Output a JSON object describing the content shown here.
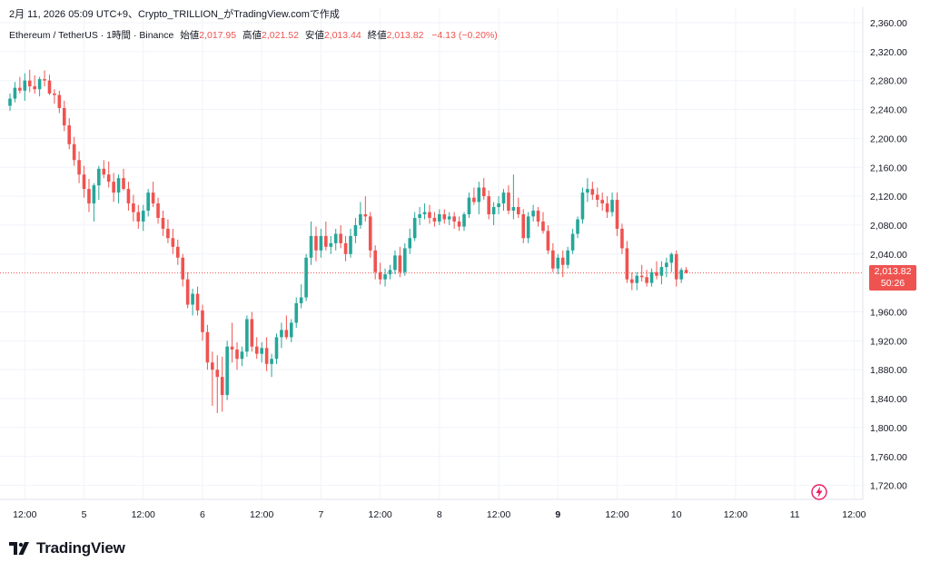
{
  "header": {
    "caption": "2月 11, 2026 05:09 UTC+9、Crypto_TRILLION_がTradingView.comで作成"
  },
  "legend": {
    "symbol": "Ethereum / TetherUS · 1時間 · Binance",
    "open_label": "始値",
    "open_value": "2,017.95",
    "high_label": "高値",
    "high_value": "2,021.52",
    "low_label": "安値",
    "low_value": "2,013.44",
    "close_label": "終値",
    "close_value": "2,013.82",
    "change": "−4.13 (−0.20%)"
  },
  "price_tag": {
    "price": "2,013.82",
    "countdown": "50:26"
  },
  "brand": {
    "name": "TradingView"
  },
  "icons": {
    "logo": "tradingview-logo-icon",
    "bolt": "lightning-icon"
  },
  "colors": {
    "up": "#26a69a",
    "down": "#ef5350",
    "grid": "#f0f3fa",
    "axis_text": "#131722",
    "last_price_line": "#ef5350"
  },
  "chart_data": {
    "type": "candlestick",
    "symbol": "ETH/USDT",
    "interval": "1h",
    "ylim": [
      1700,
      2360
    ],
    "y_ticks": [
      {
        "value": 2360,
        "label": "2,360.00"
      },
      {
        "value": 2320,
        "label": "2,320.00"
      },
      {
        "value": 2280,
        "label": "2,280.00"
      },
      {
        "value": 2240,
        "label": "2,240.00"
      },
      {
        "value": 2200,
        "label": "2,200.00"
      },
      {
        "value": 2160,
        "label": "2,160.00"
      },
      {
        "value": 2120,
        "label": "2,120.00"
      },
      {
        "value": 2080,
        "label": "2,080.00"
      },
      {
        "value": 2040,
        "label": "2,040.00"
      },
      {
        "value": 1960,
        "label": "1,960.00"
      },
      {
        "value": 1920,
        "label": "1,920.00"
      },
      {
        "value": 1880,
        "label": "1,880.00"
      },
      {
        "value": 1840,
        "label": "1,840.00"
      },
      {
        "value": 1800,
        "label": "1,800.00"
      },
      {
        "value": 1760,
        "label": "1,760.00"
      },
      {
        "value": 1720,
        "label": "1,720.00"
      }
    ],
    "x_ticks": [
      {
        "index": 3,
        "label": "12:00",
        "bold": false
      },
      {
        "index": 15,
        "label": "5",
        "bold": false
      },
      {
        "index": 27,
        "label": "12:00",
        "bold": false
      },
      {
        "index": 39,
        "label": "6",
        "bold": false
      },
      {
        "index": 51,
        "label": "12:00",
        "bold": false
      },
      {
        "index": 63,
        "label": "7",
        "bold": false
      },
      {
        "index": 75,
        "label": "12:00",
        "bold": false
      },
      {
        "index": 87,
        "label": "8",
        "bold": false
      },
      {
        "index": 99,
        "label": "12:00",
        "bold": false
      },
      {
        "index": 111,
        "label": "9",
        "bold": true
      },
      {
        "index": 123,
        "label": "12:00",
        "bold": false
      },
      {
        "index": 135,
        "label": "10",
        "bold": false
      },
      {
        "index": 147,
        "label": "12:00",
        "bold": false
      },
      {
        "index": 159,
        "label": "11",
        "bold": false
      },
      {
        "index": 171,
        "label": "12:00",
        "bold": false
      }
    ],
    "last_price": 2013.82,
    "candles": [
      [
        2245,
        2262,
        2238,
        2255
      ],
      [
        2255,
        2278,
        2250,
        2270
      ],
      [
        2270,
        2285,
        2262,
        2266
      ],
      [
        2266,
        2290,
        2252,
        2280
      ],
      [
        2280,
        2295,
        2264,
        2272
      ],
      [
        2272,
        2287,
        2262,
        2268
      ],
      [
        2268,
        2285,
        2258,
        2282
      ],
      [
        2282,
        2294,
        2272,
        2280
      ],
      [
        2280,
        2288,
        2260,
        2262
      ],
      [
        2262,
        2268,
        2248,
        2260
      ],
      [
        2260,
        2266,
        2235,
        2242
      ],
      [
        2242,
        2252,
        2210,
        2218
      ],
      [
        2218,
        2228,
        2185,
        2192
      ],
      [
        2192,
        2202,
        2162,
        2170
      ],
      [
        2170,
        2182,
        2138,
        2150
      ],
      [
        2150,
        2162,
        2118,
        2130
      ],
      [
        2130,
        2144,
        2098,
        2110
      ],
      [
        2110,
        2138,
        2085,
        2135
      ],
      [
        2135,
        2162,
        2115,
        2158
      ],
      [
        2158,
        2170,
        2145,
        2150
      ],
      [
        2150,
        2168,
        2132,
        2140
      ],
      [
        2140,
        2152,
        2112,
        2125
      ],
      [
        2125,
        2150,
        2110,
        2145
      ],
      [
        2145,
        2158,
        2128,
        2130
      ],
      [
        2130,
        2140,
        2100,
        2110
      ],
      [
        2110,
        2122,
        2085,
        2098
      ],
      [
        2098,
        2108,
        2075,
        2085
      ],
      [
        2085,
        2108,
        2072,
        2100
      ],
      [
        2100,
        2130,
        2092,
        2125
      ],
      [
        2125,
        2140,
        2105,
        2110
      ],
      [
        2110,
        2118,
        2082,
        2090
      ],
      [
        2090,
        2100,
        2065,
        2075
      ],
      [
        2075,
        2088,
        2055,
        2062
      ],
      [
        2062,
        2075,
        2040,
        2050
      ],
      [
        2050,
        2060,
        2025,
        2035
      ],
      [
        2035,
        2040,
        1995,
        2005
      ],
      [
        2005,
        2015,
        1965,
        1970
      ],
      [
        1970,
        1992,
        1955,
        1985
      ],
      [
        1985,
        1995,
        1955,
        1962
      ],
      [
        1962,
        1970,
        1920,
        1932
      ],
      [
        1932,
        1942,
        1880,
        1890
      ],
      [
        1890,
        1905,
        1830,
        1880
      ],
      [
        1880,
        1900,
        1820,
        1870
      ],
      [
        1870,
        1898,
        1822,
        1845
      ],
      [
        1845,
        1920,
        1838,
        1912
      ],
      [
        1912,
        1945,
        1890,
        1908
      ],
      [
        1908,
        1918,
        1880,
        1895
      ],
      [
        1895,
        1912,
        1885,
        1905
      ],
      [
        1905,
        1955,
        1898,
        1950
      ],
      [
        1950,
        1960,
        1905,
        1912
      ],
      [
        1912,
        1925,
        1895,
        1902
      ],
      [
        1902,
        1918,
        1890,
        1910
      ],
      [
        1910,
        1925,
        1878,
        1888
      ],
      [
        1888,
        1902,
        1870,
        1895
      ],
      [
        1895,
        1930,
        1888,
        1925
      ],
      [
        1925,
        1945,
        1910,
        1935
      ],
      [
        1935,
        1955,
        1922,
        1925
      ],
      [
        1925,
        1950,
        1918,
        1945
      ],
      [
        1945,
        1980,
        1938,
        1972
      ],
      [
        1972,
        1998,
        1965,
        1980
      ],
      [
        1980,
        2040,
        1975,
        2035
      ],
      [
        2035,
        2085,
        2025,
        2065
      ],
      [
        2065,
        2078,
        2030,
        2045
      ],
      [
        2045,
        2075,
        2035,
        2065
      ],
      [
        2065,
        2085,
        2045,
        2050
      ],
      [
        2050,
        2065,
        2040,
        2055
      ],
      [
        2055,
        2075,
        2045,
        2068
      ],
      [
        2068,
        2080,
        2048,
        2055
      ],
      [
        2055,
        2065,
        2030,
        2040
      ],
      [
        2040,
        2075,
        2035,
        2065
      ],
      [
        2065,
        2090,
        2055,
        2080
      ],
      [
        2080,
        2112,
        2075,
        2095
      ],
      [
        2095,
        2120,
        2085,
        2092
      ],
      [
        2092,
        2098,
        2035,
        2045
      ],
      [
        2045,
        2052,
        2005,
        2015
      ],
      [
        2015,
        2028,
        1998,
        2005
      ],
      [
        2005,
        2020,
        1995,
        2012
      ],
      [
        2012,
        2025,
        2005,
        2018
      ],
      [
        2018,
        2045,
        2012,
        2038
      ],
      [
        2038,
        2050,
        2008,
        2015
      ],
      [
        2015,
        2055,
        2010,
        2048
      ],
      [
        2048,
        2075,
        2040,
        2062
      ],
      [
        2062,
        2098,
        2058,
        2090
      ],
      [
        2090,
        2105,
        2080,
        2095
      ],
      [
        2095,
        2110,
        2088,
        2098
      ],
      [
        2098,
        2108,
        2082,
        2090
      ],
      [
        2090,
        2098,
        2078,
        2085
      ],
      [
        2085,
        2102,
        2080,
        2095
      ],
      [
        2095,
        2102,
        2082,
        2088
      ],
      [
        2088,
        2098,
        2080,
        2092
      ],
      [
        2092,
        2098,
        2075,
        2085
      ],
      [
        2085,
        2092,
        2072,
        2078
      ],
      [
        2078,
        2098,
        2072,
        2095
      ],
      [
        2095,
        2125,
        2090,
        2118
      ],
      [
        2118,
        2132,
        2108,
        2112
      ],
      [
        2112,
        2140,
        2095,
        2132
      ],
      [
        2132,
        2145,
        2115,
        2120
      ],
      [
        2120,
        2128,
        2088,
        2095
      ],
      [
        2095,
        2112,
        2080,
        2105
      ],
      [
        2105,
        2120,
        2095,
        2110
      ],
      [
        2110,
        2130,
        2100,
        2125
      ],
      [
        2125,
        2135,
        2095,
        2100
      ],
      [
        2100,
        2150,
        2088,
        2105
      ],
      [
        2105,
        2118,
        2090,
        2095
      ],
      [
        2095,
        2102,
        2055,
        2062
      ],
      [
        2062,
        2098,
        2055,
        2092
      ],
      [
        2092,
        2108,
        2085,
        2100
      ],
      [
        2100,
        2105,
        2078,
        2085
      ],
      [
        2085,
        2098,
        2068,
        2072
      ],
      [
        2072,
        2080,
        2040,
        2045
      ],
      [
        2045,
        2055,
        2015,
        2020
      ],
      [
        2020,
        2040,
        2012,
        2035
      ],
      [
        2035,
        2045,
        2008,
        2025
      ],
      [
        2025,
        2050,
        2020,
        2045
      ],
      [
        2045,
        2075,
        2040,
        2068
      ],
      [
        2068,
        2092,
        2062,
        2088
      ],
      [
        2088,
        2132,
        2082,
        2125
      ],
      [
        2125,
        2145,
        2112,
        2130
      ],
      [
        2130,
        2140,
        2115,
        2122
      ],
      [
        2122,
        2132,
        2105,
        2115
      ],
      [
        2115,
        2125,
        2100,
        2110
      ],
      [
        2110,
        2120,
        2090,
        2098
      ],
      [
        2098,
        2125,
        2092,
        2115
      ],
      [
        2115,
        2125,
        2065,
        2075
      ],
      [
        2075,
        2082,
        2040,
        2048
      ],
      [
        2048,
        2058,
        2000,
        2005
      ],
      [
        2005,
        2015,
        1990,
        2000
      ],
      [
        2000,
        2015,
        1990,
        2010
      ],
      [
        2010,
        2025,
        2002,
        2008
      ],
      [
        2008,
        2018,
        1995,
        2000
      ],
      [
        2000,
        2020,
        1995,
        2015
      ],
      [
        2015,
        2030,
        2005,
        2010
      ],
      [
        2010,
        2030,
        1998,
        2022
      ],
      [
        2022,
        2035,
        2008,
        2028
      ],
      [
        2028,
        2042,
        2015,
        2040
      ],
      [
        2040,
        2045,
        1995,
        2005
      ],
      [
        2005,
        2021,
        2000,
        2018
      ],
      [
        2018,
        2022,
        2013,
        2014
      ]
    ]
  }
}
